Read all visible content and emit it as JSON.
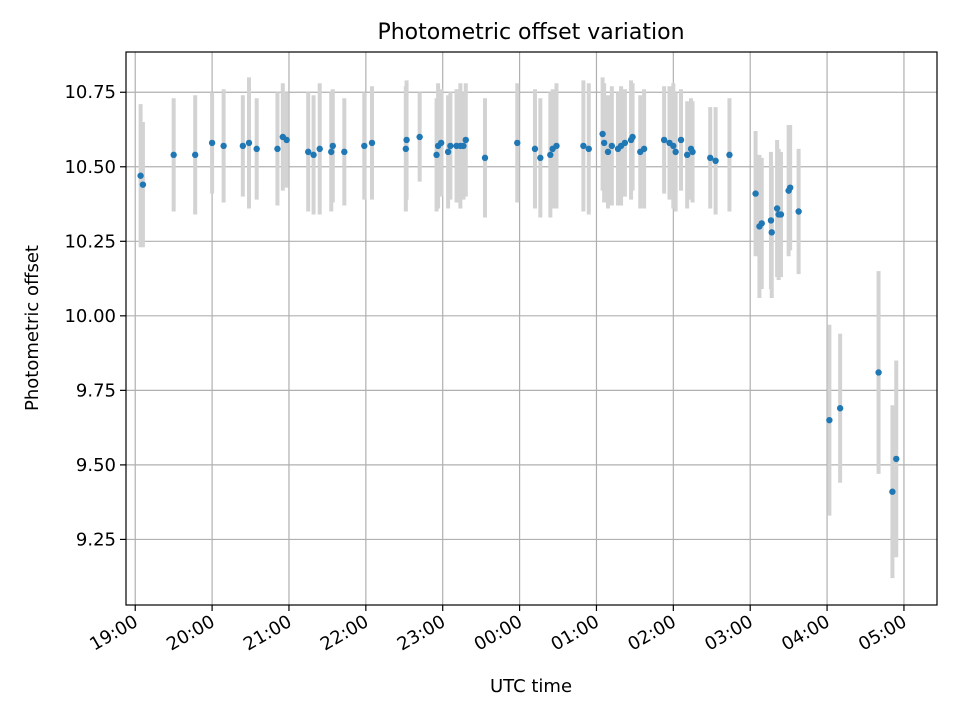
{
  "chart_data": {
    "type": "scatter",
    "title": "Photometric offset variation",
    "xlabel": "UTC time",
    "ylabel": "Photometric offset",
    "x_unit": "hours",
    "xlim": [
      18.88,
      29.43
    ],
    "ylim": [
      9.03,
      10.885
    ],
    "xticks": [
      19,
      20,
      21,
      22,
      23,
      24,
      25,
      26,
      27,
      28,
      29
    ],
    "xtick_labels": [
      "19:00",
      "20:00",
      "21:00",
      "22:00",
      "23:00",
      "00:00",
      "01:00",
      "02:00",
      "03:00",
      "04:00",
      "05:00"
    ],
    "yticks": [
      9.25,
      9.5,
      9.75,
      10.0,
      10.25,
      10.5,
      10.75
    ],
    "ytick_labels": [
      "9.25",
      "9.50",
      "9.75",
      "10.00",
      "10.25",
      "10.50",
      "10.75"
    ],
    "grid": true,
    "legend": "none",
    "colors": {
      "marker": "#1f77b4",
      "errorbar": "#d3d3d3",
      "grid": "#b0b0b0"
    },
    "series": [
      {
        "x": [
          19.07,
          19.1,
          19.5,
          19.78,
          20.0,
          20.15,
          20.4,
          20.48,
          20.58,
          20.85,
          20.92,
          20.97,
          21.25,
          21.32,
          21.4,
          21.55,
          21.57,
          21.72,
          21.98,
          22.08,
          22.52,
          22.53,
          22.7,
          22.92,
          22.94,
          22.98,
          23.07,
          23.1,
          23.18,
          23.23,
          23.27,
          23.3,
          23.55,
          23.97,
          24.2,
          24.27,
          24.4,
          24.43,
          24.48,
          24.83,
          24.9,
          25.08,
          25.1,
          25.15,
          25.2,
          25.28,
          25.32,
          25.37,
          25.45,
          25.47,
          25.57,
          25.62,
          25.88,
          25.95,
          26.0,
          26.03,
          26.1,
          26.18,
          26.23,
          26.25,
          26.48,
          26.55,
          26.73,
          27.07,
          27.12,
          27.15,
          27.27,
          27.28,
          27.35,
          27.37,
          27.4,
          27.5,
          27.52,
          27.63,
          28.03,
          28.17,
          28.67,
          28.85,
          28.9
        ],
        "y": [
          10.47,
          10.44,
          10.54,
          10.54,
          10.58,
          10.57,
          10.57,
          10.58,
          10.56,
          10.56,
          10.6,
          10.59,
          10.55,
          10.54,
          10.56,
          10.55,
          10.57,
          10.55,
          10.57,
          10.58,
          10.56,
          10.59,
          10.6,
          10.54,
          10.57,
          10.58,
          10.55,
          10.57,
          10.57,
          10.57,
          10.57,
          10.59,
          10.53,
          10.58,
          10.56,
          10.53,
          10.54,
          10.56,
          10.57,
          10.57,
          10.56,
          10.61,
          10.58,
          10.55,
          10.57,
          10.56,
          10.57,
          10.58,
          10.59,
          10.6,
          10.55,
          10.56,
          10.59,
          10.58,
          10.57,
          10.55,
          10.59,
          10.54,
          10.56,
          10.55,
          10.53,
          10.52,
          10.54,
          10.41,
          10.3,
          10.31,
          10.32,
          10.28,
          10.36,
          10.34,
          10.34,
          10.42,
          10.43,
          10.35,
          9.65,
          9.69,
          9.81,
          9.41,
          9.52
        ],
        "err": [
          0.24,
          0.21,
          0.19,
          0.2,
          0.17,
          0.19,
          0.17,
          0.22,
          0.17,
          0.19,
          0.18,
          0.16,
          0.2,
          0.2,
          0.22,
          0.2,
          0.19,
          0.18,
          0.18,
          0.19,
          0.21,
          0.2,
          0.15,
          0.19,
          0.21,
          0.18,
          0.19,
          0.18,
          0.19,
          0.21,
          0.18,
          0.19,
          0.2,
          0.2,
          0.2,
          0.2,
          0.21,
          0.2,
          0.21,
          0.22,
          0.22,
          0.19,
          0.2,
          0.19,
          0.2,
          0.19,
          0.2,
          0.18,
          0.2,
          0.18,
          0.19,
          0.2,
          0.18,
          0.19,
          0.21,
          0.2,
          0.17,
          0.18,
          0.17,
          0.17,
          0.17,
          0.18,
          0.19,
          0.21,
          0.24,
          0.22,
          0.23,
          0.22,
          0.23,
          0.22,
          0.21,
          0.22,
          0.21,
          0.21,
          0.32,
          0.25,
          0.34,
          0.29,
          0.33
        ]
      }
    ]
  }
}
